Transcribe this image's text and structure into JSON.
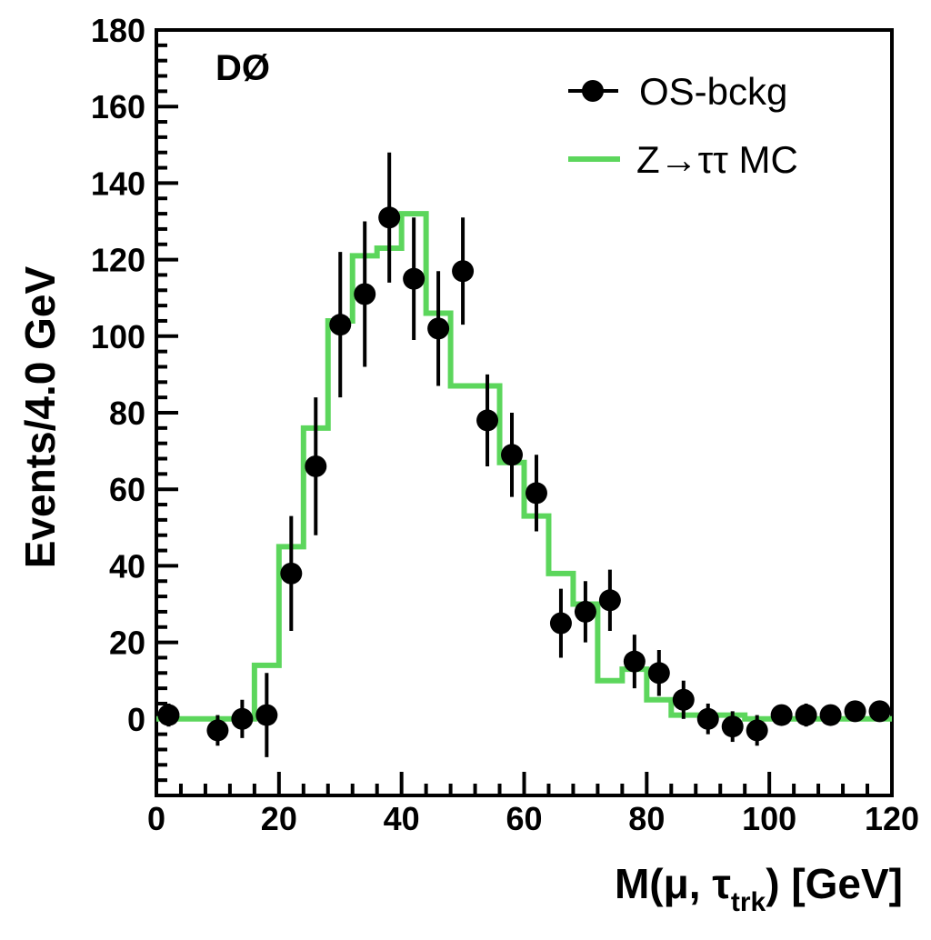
{
  "chart_data": {
    "type": "scatter",
    "experiment_label": "DØ",
    "xlabel": "M(μ, τtrk) [GeV]",
    "xlabel_parts": {
      "main": "M(μ, τ",
      "sub": "trk",
      "tail": ") [GeV]"
    },
    "ylabel": "Events/4.0 GeV",
    "xlim": [
      0,
      120
    ],
    "ylim": [
      -20,
      180
    ],
    "x_ticks": [
      "0",
      "20",
      "40",
      "60",
      "80",
      "100",
      "120"
    ],
    "y_ticks": [
      "0",
      "20",
      "40",
      "60",
      "80",
      "100",
      "120",
      "140",
      "160",
      "180"
    ],
    "legend": {
      "position": "top-right",
      "entries": [
        {
          "label": "OS-bckg",
          "style": "marker-errorbar",
          "color": "#000000"
        },
        {
          "label": "Z→ττ MC",
          "style": "line",
          "color": "#5cd65c"
        }
      ]
    },
    "series": [
      {
        "name": "OS-bckg",
        "kind": "points-with-errors",
        "color": "#000000",
        "points": [
          {
            "x": 2,
            "y": 1,
            "err": 3
          },
          {
            "x": 10,
            "y": -3,
            "err": 4
          },
          {
            "x": 14,
            "y": 0,
            "err": 5
          },
          {
            "x": 18,
            "y": 1,
            "err": 11
          },
          {
            "x": 22,
            "y": 38,
            "err": 15
          },
          {
            "x": 26,
            "y": 66,
            "err": 18
          },
          {
            "x": 30,
            "y": 103,
            "err": 19
          },
          {
            "x": 34,
            "y": 111,
            "err": 19
          },
          {
            "x": 38,
            "y": 131,
            "err": 17
          },
          {
            "x": 42,
            "y": 115,
            "err": 16
          },
          {
            "x": 46,
            "y": 102,
            "err": 15
          },
          {
            "x": 50,
            "y": 117,
            "err": 14
          },
          {
            "x": 54,
            "y": 78,
            "err": 12
          },
          {
            "x": 58,
            "y": 69,
            "err": 11
          },
          {
            "x": 62,
            "y": 59,
            "err": 10
          },
          {
            "x": 66,
            "y": 25,
            "err": 9
          },
          {
            "x": 70,
            "y": 28,
            "err": 8
          },
          {
            "x": 74,
            "y": 31,
            "err": 8
          },
          {
            "x": 78,
            "y": 15,
            "err": 7
          },
          {
            "x": 82,
            "y": 12,
            "err": 6
          },
          {
            "x": 86,
            "y": 5,
            "err": 5
          },
          {
            "x": 90,
            "y": 0,
            "err": 4
          },
          {
            "x": 94,
            "y": -2,
            "err": 4
          },
          {
            "x": 98,
            "y": -3,
            "err": 4
          },
          {
            "x": 102,
            "y": 1,
            "err": 2
          },
          {
            "x": 106,
            "y": 1,
            "err": 3
          },
          {
            "x": 110,
            "y": 1,
            "err": 2
          },
          {
            "x": 114,
            "y": 2,
            "err": 2
          },
          {
            "x": 118,
            "y": 2,
            "err": 2
          }
        ]
      },
      {
        "name": "Z→ττ MC",
        "kind": "step-histogram",
        "color": "#5cd65c",
        "bin_edges": [
          0,
          16,
          20,
          24,
          28,
          32,
          36,
          40,
          44,
          48,
          52,
          56,
          60,
          64,
          68,
          72,
          76,
          80,
          84,
          88,
          92,
          96,
          100,
          120
        ],
        "values": [
          0,
          14,
          45,
          76,
          104,
          121,
          123,
          132,
          106,
          87,
          87,
          67,
          53,
          38,
          30,
          10,
          13,
          5,
          1,
          1,
          1,
          0,
          0
        ]
      }
    ]
  }
}
